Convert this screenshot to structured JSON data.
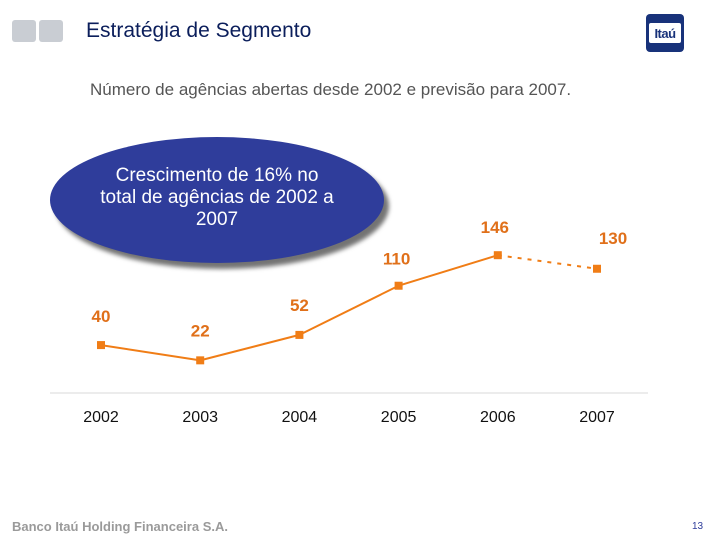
{
  "header": {
    "title": "Estratégia de Segmento",
    "logo_text": "Itaú",
    "subtitle": "Número de agências abertas desde 2002 e previsão para 2007."
  },
  "callout": {
    "text": "Crescimento de  16% no total de agências de 2002 a 2007",
    "color": "#2f3d9b"
  },
  "chart_data": {
    "type": "line",
    "x": [
      "2002",
      "2003",
      "2004",
      "2005",
      "2006",
      "2007"
    ],
    "series": [
      {
        "values": [
          40,
          22,
          52,
          110,
          146,
          130
        ],
        "color": "#f07d16",
        "segment_style": [
          "solid",
          "solid",
          "solid",
          "solid",
          "dashed"
        ]
      }
    ],
    "data_labels": [
      "40",
      "22",
      "52",
      "110",
      "146",
      "130"
    ],
    "title": "",
    "xlabel": "",
    "ylabel": "",
    "ylim": [
      0,
      160
    ],
    "grid": false,
    "legend": "none"
  },
  "footer": {
    "company": "Banco Itaú Holding Financeira S.A.",
    "page_number": "13"
  },
  "colors": {
    "title": "#0b1e5b",
    "accent": "#f07d16",
    "data_label": "#e0701a",
    "brand": "#18327a"
  }
}
